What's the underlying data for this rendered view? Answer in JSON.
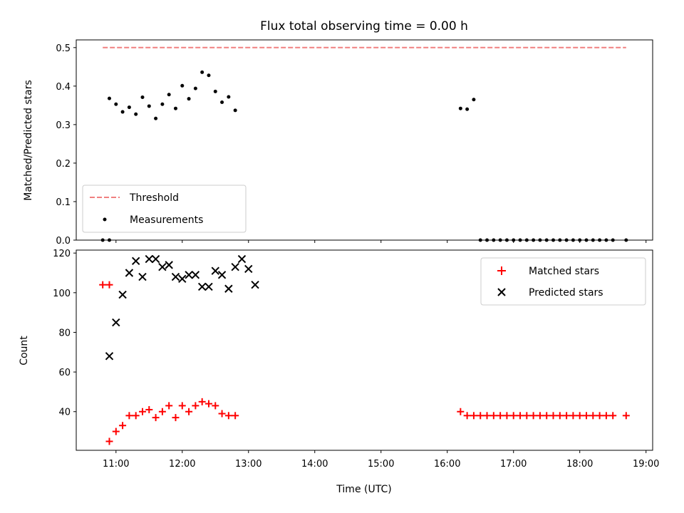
{
  "chart_data": [
    {
      "type": "scatter",
      "title": "Flux total observing time = 0.00 h",
      "ylabel": "Matched/Predicted stars",
      "xlabel": "",
      "ylim": [
        0,
        0.52
      ],
      "yticks": [
        0.0,
        0.1,
        0.2,
        0.3,
        0.4,
        0.5
      ],
      "ytick_labels": [
        "0.0",
        "0.1",
        "0.2",
        "0.3",
        "0.4",
        "0.5"
      ],
      "xlim_hours": [
        10.4,
        19.1
      ],
      "xticks_hours": [
        11,
        12,
        13,
        14,
        15,
        16,
        17,
        18,
        19
      ],
      "grid": false,
      "legend": {
        "placement": "lower-left",
        "entries": [
          {
            "label": "Threshold",
            "series": "threshold"
          },
          {
            "label": "Measurements",
            "series": "measurements"
          }
        ]
      },
      "series": [
        {
          "name": "Threshold",
          "kind": "dashed-line",
          "color": "#f08080",
          "x": [
            "10:48",
            "18:42"
          ],
          "y": [
            0.5,
            0.5
          ]
        },
        {
          "name": "Measurements",
          "kind": "dot",
          "color": "#000000",
          "x": [
            "10:48",
            "10:54",
            "10:54",
            "11:00",
            "11:06",
            "11:12",
            "11:18",
            "11:24",
            "11:30",
            "11:36",
            "11:42",
            "11:48",
            "11:54",
            "12:00",
            "12:06",
            "12:12",
            "12:18",
            "12:24",
            "12:30",
            "12:36",
            "12:42",
            "12:48",
            "16:12",
            "16:18",
            "16:24",
            "16:30",
            "16:36",
            "16:42",
            "16:48",
            "16:54",
            "17:00",
            "17:06",
            "17:12",
            "17:18",
            "17:24",
            "17:30",
            "17:36",
            "17:42",
            "17:48",
            "17:54",
            "18:00",
            "18:06",
            "18:12",
            "18:18",
            "18:24",
            "18:30",
            "18:42"
          ],
          "y": [
            0.0,
            0.0,
            0.368,
            0.353,
            0.333,
            0.345,
            0.327,
            0.371,
            0.348,
            0.316,
            0.353,
            0.378,
            0.342,
            0.401,
            0.367,
            0.394,
            0.436,
            0.428,
            0.386,
            0.358,
            0.372,
            0.337,
            0.342,
            0.34,
            0.365,
            0.0,
            0.0,
            0.0,
            0.0,
            0.0,
            0.0,
            0.0,
            0.0,
            0.0,
            0.0,
            0.0,
            0.0,
            0.0,
            0.0,
            0.0,
            0.0,
            0.0,
            0.0,
            0.0,
            0.0,
            0.0,
            0.0
          ]
        }
      ]
    },
    {
      "type": "scatter",
      "title": "",
      "ylabel": "Count",
      "xlabel": "Time (UTC)",
      "ylim": [
        20.5,
        121.5
      ],
      "yticks": [
        40,
        60,
        80,
        100,
        120
      ],
      "ytick_labels": [
        "40",
        "60",
        "80",
        "100",
        "120"
      ],
      "xlim_hours": [
        10.4,
        19.1
      ],
      "xticks_hours": [
        11,
        12,
        13,
        14,
        15,
        16,
        17,
        18,
        19
      ],
      "xtick_labels": [
        "11:00",
        "12:00",
        "13:00",
        "14:00",
        "15:00",
        "16:00",
        "17:00",
        "18:00",
        "19:00"
      ],
      "grid": false,
      "legend": {
        "placement": "top-right",
        "entries": [
          {
            "label": "Matched stars",
            "series": "matched"
          },
          {
            "label": "Predicted stars",
            "series": "predicted"
          }
        ]
      },
      "series": [
        {
          "name": "Matched stars",
          "kind": "plus",
          "color": "#ff0000",
          "x": [
            "10:48",
            "10:54",
            "10:54",
            "11:00",
            "11:06",
            "11:12",
            "11:18",
            "11:24",
            "11:30",
            "11:36",
            "11:42",
            "11:48",
            "11:54",
            "12:00",
            "12:06",
            "12:12",
            "12:18",
            "12:24",
            "12:30",
            "12:36",
            "12:42",
            "12:48",
            "16:12",
            "16:18",
            "16:24",
            "16:30",
            "16:36",
            "16:42",
            "16:48",
            "16:54",
            "17:00",
            "17:06",
            "17:12",
            "17:18",
            "17:24",
            "17:30",
            "17:36",
            "17:42",
            "17:48",
            "17:54",
            "18:00",
            "18:06",
            "18:12",
            "18:18",
            "18:24",
            "18:30",
            "18:42"
          ],
          "y": [
            104,
            104,
            25,
            30,
            33,
            38,
            38,
            40,
            41,
            37,
            40,
            43,
            37,
            43,
            40,
            43,
            45,
            44,
            43,
            39,
            38,
            38,
            40,
            38,
            38,
            38,
            38,
            38,
            38,
            38,
            38,
            38,
            38,
            38,
            38,
            38,
            38,
            38,
            38,
            38,
            38,
            38,
            38,
            38,
            38,
            38,
            38
          ]
        },
        {
          "name": "Predicted stars",
          "kind": "x",
          "color": "#000000",
          "x": [
            "10:54",
            "11:00",
            "11:06",
            "11:12",
            "11:18",
            "11:24",
            "11:30",
            "11:36",
            "11:42",
            "11:48",
            "11:54",
            "12:00",
            "12:06",
            "12:12",
            "12:18",
            "12:24",
            "12:30",
            "12:36",
            "12:42",
            "12:48",
            "12:54",
            "13:00",
            "13:06"
          ],
          "y": [
            68,
            85,
            99,
            110,
            116,
            108,
            117,
            117,
            113,
            114,
            108,
            107,
            109,
            109,
            103,
            103,
            111,
            109,
            102,
            113,
            117,
            112,
            104
          ]
        }
      ]
    }
  ]
}
